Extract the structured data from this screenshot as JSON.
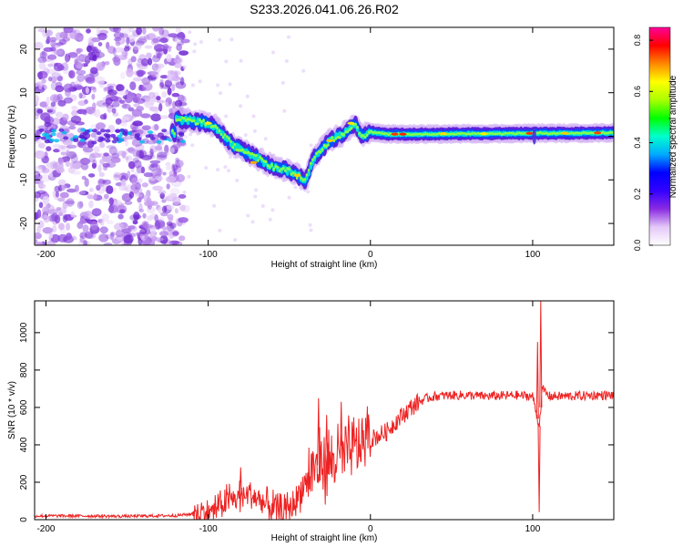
{
  "title": "S233.2026.041.06.26.R02",
  "chart_data": [
    {
      "type": "heatmap",
      "xlabel": "Height of straight line (km)",
      "ylabel": "Frequency (Hz)",
      "xlim": [
        -207,
        150
      ],
      "ylim": [
        -25,
        25
      ],
      "xticks": [
        -200,
        -100,
        0,
        100
      ],
      "yticks": [
        -20,
        -10,
        0,
        10,
        20
      ],
      "colorbar": {
        "label": "Normalized spectral amplitude",
        "range": [
          0,
          0.85
        ],
        "ticks": [
          "0.0",
          "0.2",
          "0.4",
          "0.6",
          "0.8"
        ],
        "colors": [
          "#ffffff",
          "#e4c8f8",
          "#8a2be2",
          "#3300ff",
          "#0000ff",
          "#00aaff",
          "#00ffcc",
          "#00ff00",
          "#aaff00",
          "#ffff00",
          "#ff8800",
          "#ff0000",
          "#ff0099"
        ]
      },
      "signal_track": {
        "description_points_x": [
          -120,
          -110,
          -100,
          -95,
          -90,
          -85,
          -80,
          -75,
          -70,
          -65,
          -60,
          -55,
          -50,
          -45,
          -40,
          -35,
          -30,
          -25,
          -20,
          -15,
          -10,
          -5,
          0,
          10,
          20,
          40,
          60,
          80,
          100,
          120,
          150
        ],
        "description_points_y": [
          4,
          3.5,
          3,
          2,
          0,
          -2,
          -3,
          -4,
          -5,
          -6,
          -7,
          -7.5,
          -8,
          -9,
          -10,
          -5,
          -3,
          -1,
          0,
          1,
          3,
          0,
          1,
          0.5,
          0.5,
          0.5,
          0.6,
          0.6,
          0.7,
          0.7,
          0.8
        ]
      }
    },
    {
      "type": "line",
      "xlabel": "Height of straight line (km)",
      "ylabel": "SNR (10 * v/v)",
      "xlim": [
        -207,
        150
      ],
      "ylim": [
        0,
        1170
      ],
      "xticks": [
        -200,
        -100,
        0,
        100
      ],
      "yticks": [
        0,
        200,
        400,
        600,
        800,
        1000
      ],
      "color": "#ee2222",
      "series": [
        {
          "name": "SNR",
          "x": [
            -207,
            -180,
            -150,
            -120,
            -110,
            -100,
            -95,
            -90,
            -85,
            -80,
            -75,
            -70,
            -65,
            -60,
            -55,
            -50,
            -45,
            -40,
            -35,
            -30,
            -25,
            -20,
            -15,
            -10,
            -5,
            0,
            5,
            10,
            15,
            20,
            25,
            30,
            35,
            40,
            50,
            60,
            70,
            80,
            90,
            100,
            104,
            106,
            110,
            120,
            130,
            140,
            150
          ],
          "y": [
            20,
            20,
            18,
            22,
            30,
            40,
            60,
            90,
            110,
            130,
            140,
            110,
            80,
            60,
            40,
            60,
            120,
            200,
            280,
            300,
            310,
            330,
            360,
            370,
            420,
            430,
            450,
            470,
            520,
            560,
            600,
            630,
            650,
            660,
            665,
            665,
            660,
            662,
            665,
            660,
            500,
            700,
            660,
            660,
            662,
            665,
            665
          ],
          "spikes": [
            {
              "x": -80,
              "y": 280
            },
            {
              "x": -32,
              "y": 650
            },
            {
              "x": -27,
              "y": 560
            },
            {
              "x": -18,
              "y": 630
            },
            {
              "x": 103,
              "y": 950
            },
            {
              "x": 104,
              "y": 40
            },
            {
              "x": 105,
              "y": 1170
            }
          ]
        }
      ]
    }
  ]
}
